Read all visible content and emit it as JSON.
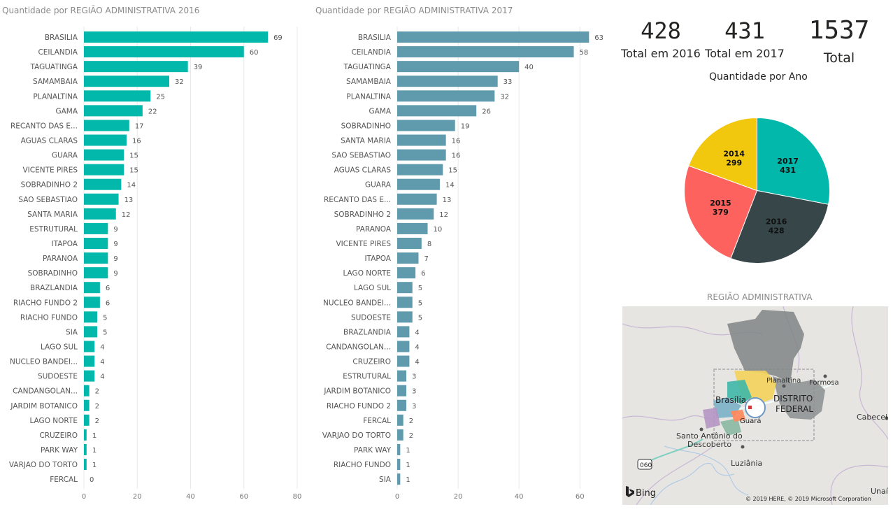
{
  "chart_data": [
    {
      "type": "bar",
      "orientation": "horizontal",
      "title": "Quantidade por REGIÃO ADMINISTRATIVA 2016",
      "color": "#01b8aa",
      "xlim": [
        0,
        80
      ],
      "x_ticks": [
        0,
        20,
        40,
        60,
        80
      ],
      "categories": [
        "BRASILIA",
        "CEILANDIA",
        "TAGUATINGA",
        "SAMAMBAIA",
        "PLANALTINA",
        "GAMA",
        "RECANTO DAS E...",
        "AGUAS CLARAS",
        "GUARA",
        "VICENTE PIRES",
        "SOBRADINHO 2",
        "SAO SEBASTIAO",
        "SANTA MARIA",
        "ESTRUTURAL",
        "ITAPOA",
        "PARANOA",
        "SOBRADINHO",
        "BRAZLANDIA",
        "RIACHO FUNDO 2",
        "RIACHO FUNDO",
        "SIA",
        "LAGO SUL",
        "NUCLEO BANDEI...",
        "SUDOESTE",
        "CANDANGOLAN...",
        "JARDIM BOTANICO",
        "LAGO NORTE",
        "CRUZEIRO",
        "PARK WAY",
        "VARJAO DO TORTO",
        "FERCAL"
      ],
      "values": [
        69,
        60,
        39,
        32,
        25,
        22,
        17,
        16,
        15,
        15,
        14,
        13,
        12,
        9,
        9,
        9,
        9,
        6,
        6,
        5,
        5,
        4,
        4,
        4,
        2,
        2,
        2,
        1,
        1,
        1,
        0
      ]
    },
    {
      "type": "bar",
      "orientation": "horizontal",
      "title": "Quantidade por REGIÃO ADMINISTRATIVA 2017",
      "color": "#5f9aad",
      "xlim": [
        0,
        65
      ],
      "x_ticks": [
        0,
        20,
        40,
        60
      ],
      "categories": [
        "BRASILIA",
        "CEILANDIA",
        "TAGUATINGA",
        "SAMAMBAIA",
        "PLANALTINA",
        "GAMA",
        "SOBRADINHO",
        "SANTA MARIA",
        "SAO SEBASTIAO",
        "AGUAS CLARAS",
        "GUARA",
        "RECANTO DAS E...",
        "SOBRADINHO 2",
        "PARANOA",
        "VICENTE PIRES",
        "ITAPOA",
        "LAGO NORTE",
        "LAGO SUL",
        "NUCLEO BANDEI...",
        "SUDOESTE",
        "BRAZLANDIA",
        "CANDANGOLAN...",
        "CRUZEIRO",
        "ESTRUTURAL",
        "JARDIM BOTANICO",
        "RIACHO FUNDO 2",
        "FERCAL",
        "VARJAO DO TORTO",
        "PARK WAY",
        "RIACHO FUNDO",
        "SIA"
      ],
      "values": [
        63,
        58,
        40,
        33,
        32,
        26,
        19,
        16,
        16,
        15,
        14,
        13,
        12,
        10,
        8,
        7,
        6,
        5,
        5,
        5,
        4,
        4,
        4,
        3,
        3,
        3,
        2,
        2,
        1,
        1,
        1
      ]
    },
    {
      "type": "pie",
      "title": "Quantidade por Ano",
      "slices": [
        {
          "label": "2017",
          "value": 431,
          "color": "#01b8aa"
        },
        {
          "label": "2016",
          "value": 428,
          "color": "#374649"
        },
        {
          "label": "2015",
          "value": 379,
          "color": "#fd625e"
        },
        {
          "label": "2014",
          "value": 299,
          "color": "#f2c80f"
        }
      ]
    }
  ],
  "kpis": [
    {
      "value": "428",
      "label": "Total em 2016"
    },
    {
      "value": "431",
      "label": "Total em 2017"
    },
    {
      "value": "1537",
      "label": "Total"
    }
  ],
  "map": {
    "title": "REGIÃO ADMINISTRATIVA",
    "places": {
      "planaltina": "Planaltina",
      "formosa": "Formosa",
      "brasilia": "Brasília",
      "df_line1": "DISTRITO",
      "df_line2": "FEDERAL",
      "guara": "Guará",
      "santo_antonio_line1": "Santo Antônio do",
      "santo_antonio_line2": "Descoberto",
      "luziania": "Luziânia",
      "cabeceira": "Cabeceir",
      "unai": "Unaí"
    },
    "road_shield": "060",
    "logo": "Bing",
    "copyright": "© 2019 HERE, © 2019 Microsoft Corporation"
  }
}
